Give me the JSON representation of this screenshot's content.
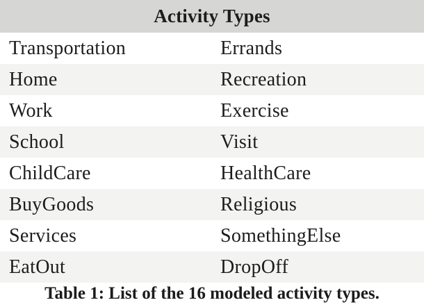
{
  "table": {
    "title": "Activity Types",
    "rows": [
      {
        "left": "Transportation",
        "right": "Errands"
      },
      {
        "left": "Home",
        "right": "Recreation"
      },
      {
        "left": "Work",
        "right": "Exercise"
      },
      {
        "left": "School",
        "right": "Visit"
      },
      {
        "left": "ChildCare",
        "right": "HealthCare"
      },
      {
        "left": "BuyGoods",
        "right": "Religious"
      },
      {
        "left": "Services",
        "right": "SomethingElse"
      },
      {
        "left": "EatOut",
        "right": "DropOff"
      }
    ],
    "caption": "Table 1: List of the 16 modeled activity types."
  },
  "colors": {
    "header_bg": "#d6d6d4",
    "stripe_bg": "#f3f3f1",
    "text": "#1c1c1c"
  }
}
